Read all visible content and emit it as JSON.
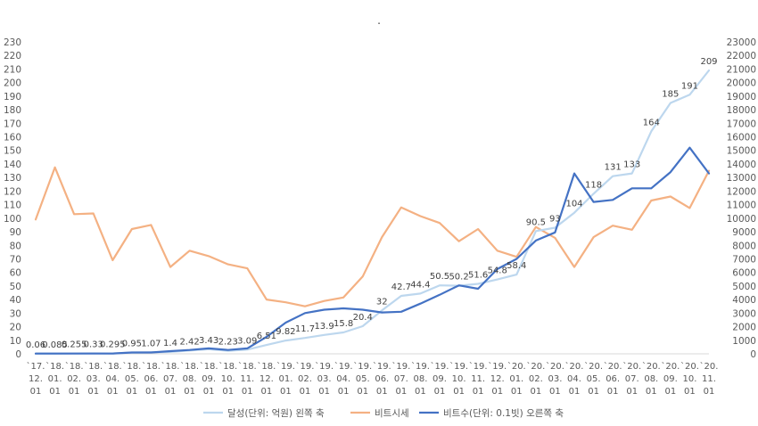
{
  "chart_data": {
    "type": "line",
    "title": ".",
    "categories": [
      [
        "`17.",
        "12.",
        "01"
      ],
      [
        "`18.",
        "01.",
        "01"
      ],
      [
        "`18.",
        "02.",
        "01"
      ],
      [
        "`18.",
        "03.",
        "01"
      ],
      [
        "`18.",
        "04.",
        "01"
      ],
      [
        "`18.",
        "05.",
        "01"
      ],
      [
        "`18.",
        "06.",
        "01"
      ],
      [
        "`18.",
        "07.",
        "01"
      ],
      [
        "`18.",
        "08.",
        "01"
      ],
      [
        "`18.",
        "09.",
        "01"
      ],
      [
        "`18.",
        "10.",
        "01"
      ],
      [
        "`18.",
        "11.",
        "01"
      ],
      [
        "`18.",
        "12.",
        "01"
      ],
      [
        "`19.",
        "01.",
        "01"
      ],
      [
        "`19.",
        "02.",
        "01"
      ],
      [
        "`19.",
        "03.",
        "01"
      ],
      [
        "`19.",
        "04.",
        "01"
      ],
      [
        "`19.",
        "05.",
        "01"
      ],
      [
        "`19.",
        "06.",
        "01"
      ],
      [
        "`19.",
        "07.",
        "01"
      ],
      [
        "`19.",
        "08.",
        "01"
      ],
      [
        "`19.",
        "09.",
        "01"
      ],
      [
        "`19.",
        "10.",
        "01"
      ],
      [
        "`19.",
        "11.",
        "01"
      ],
      [
        "`19.",
        "12.",
        "01"
      ],
      [
        "`20.",
        "01.",
        "01"
      ],
      [
        "`20.",
        "02.",
        "01"
      ],
      [
        "`20.",
        "03.",
        "01"
      ],
      [
        "`20.",
        "04.",
        "01"
      ],
      [
        "`20.",
        "05.",
        "01"
      ],
      [
        "`20.",
        "06.",
        "01"
      ],
      [
        "`20.",
        "07.",
        "01"
      ],
      [
        "`20.",
        "08.",
        "01"
      ],
      [
        "`20.",
        "09.",
        "01"
      ],
      [
        "`20.",
        "10.",
        "01"
      ],
      [
        "`20.",
        "11.",
        "01"
      ]
    ],
    "left_axis": {
      "min": 0,
      "max": 230,
      "step": 10
    },
    "right_axis": {
      "min": 0,
      "max": 23000,
      "step": 1000
    },
    "grid": false,
    "legend_position": "bottom",
    "series": [
      {
        "name": "달성(단위: 억원) 왼쪽 축",
        "axis": "left",
        "color": "#bdd7ee",
        "values": [
          0.06,
          0.085,
          0.255,
          0.33,
          0.295,
          0.95,
          1.07,
          1.4,
          2.42,
          3.43,
          2.23,
          3.09,
          6.51,
          9.82,
          11.7,
          13.9,
          15.8,
          20.4,
          32,
          42.7,
          44.4,
          50.5,
          50.2,
          51.6,
          54.8,
          58.4,
          90.5,
          93,
          104,
          118,
          131,
          133,
          164,
          185,
          191,
          209
        ],
        "labels": [
          "0.06",
          "0.085",
          "0.255",
          "0.33",
          "0.295",
          "0.95",
          "1.07",
          "1.4",
          "2.42",
          "3.43",
          "2.23",
          "3.09",
          "6.51",
          "9.82",
          "11.7",
          "13.9",
          "15.8",
          "20.4",
          "32",
          "42.7",
          "44.4",
          "50.5",
          "50.2",
          "51.6",
          "54.8",
          "58.4",
          "90.5",
          "93",
          "104",
          "118",
          "131",
          "133",
          "164",
          "185",
          "191",
          "209"
        ]
      },
      {
        "name": "비트시세",
        "axis": "right",
        "color": "#f4b183",
        "values": [
          9900,
          13750,
          10300,
          10350,
          6900,
          9200,
          9500,
          6400,
          7600,
          7200,
          6600,
          6300,
          4000,
          3800,
          3500,
          3900,
          4150,
          5700,
          8600,
          10800,
          10150,
          9650,
          8300,
          9200,
          7600,
          7150,
          9350,
          8550,
          6400,
          8600,
          9450,
          9150,
          11300,
          11600,
          10750,
          13500
        ]
      },
      {
        "name": "비트수(단위: 0.1빗) 오른쪽 축",
        "axis": "right",
        "color": "#4472c4",
        "values": [
          20,
          20,
          20,
          20,
          20,
          100,
          100,
          200,
          280,
          400,
          280,
          400,
          1250,
          2300,
          3000,
          3250,
          3350,
          3250,
          3050,
          3100,
          3700,
          4350,
          5050,
          4800,
          6250,
          7000,
          8350,
          8950,
          13300,
          11200,
          11350,
          12200,
          12200,
          13400,
          15200,
          13300
        ]
      }
    ]
  }
}
